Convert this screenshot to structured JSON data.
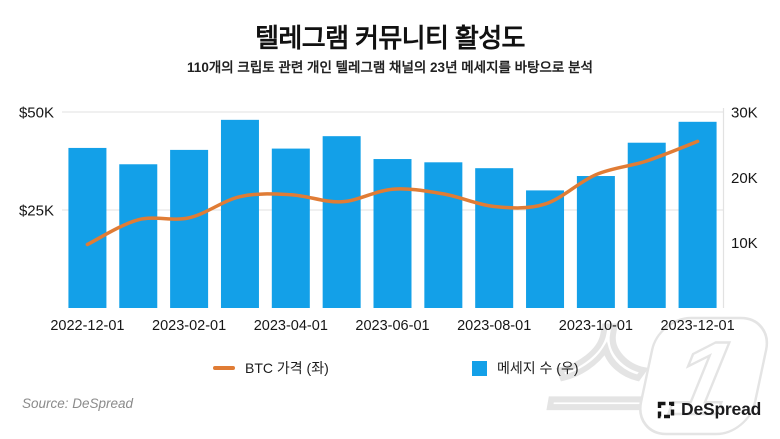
{
  "header": {
    "title": "텔레그램 커뮤니티 활성도",
    "subtitle": "110개의 크립토 관련 개인 텔레그램 채널의 23년 메세지를 바탕으로 분석"
  },
  "chart_data": {
    "type": "bar",
    "subtype": "bar+line dual-axis",
    "categories": [
      "2022-12-01",
      "2023-01-01",
      "2023-02-01",
      "2023-03-01",
      "2023-04-01",
      "2023-05-01",
      "2023-06-01",
      "2023-07-01",
      "2023-08-01",
      "2023-09-01",
      "2023-10-01",
      "2023-11-01",
      "2023-12-01"
    ],
    "series": [
      {
        "name": "메세지 수 (우)",
        "type": "bar",
        "axis": "right",
        "unit": "K messages",
        "color": "#13a0e8",
        "values": [
          24.5,
          22.0,
          24.2,
          28.8,
          24.4,
          26.3,
          22.8,
          22.3,
          21.4,
          18.0,
          20.2,
          25.3,
          28.5
        ]
      },
      {
        "name": "BTC 가격 (좌)",
        "type": "line",
        "axis": "left",
        "unit": "$K",
        "color": "#e07c35",
        "values": [
          16.2,
          22.5,
          23.0,
          28.4,
          28.9,
          27.1,
          30.3,
          29.1,
          25.9,
          26.5,
          34.0,
          37.5,
          42.5
        ]
      }
    ],
    "left_axis": {
      "range": [
        0,
        50
      ],
      "ticks": [
        {
          "label": "$50K",
          "value": 50
        },
        {
          "label": "$25K",
          "value": 25
        }
      ]
    },
    "right_axis": {
      "range": [
        0,
        30
      ],
      "ticks": [
        {
          "label": "30K",
          "value": 30
        },
        {
          "label": "20K",
          "value": 20
        },
        {
          "label": "10K",
          "value": 10
        }
      ]
    },
    "x_ticks": [
      {
        "label": "2022-12-01",
        "index": 0
      },
      {
        "label": "2023-02-01",
        "index": 2
      },
      {
        "label": "2023-04-01",
        "index": 4
      },
      {
        "label": "2023-06-01",
        "index": 6
      },
      {
        "label": "2023-08-01",
        "index": 8
      },
      {
        "label": "2023-10-01",
        "index": 10
      },
      {
        "label": "2023-12-01",
        "index": 12
      }
    ],
    "grid": "horizontal lines at left-axis ticks only",
    "legend_position": "bottom"
  },
  "legend": {
    "items": [
      {
        "label": "BTC 가격 (좌)",
        "marker": "line-dash",
        "color": "#e07c35"
      },
      {
        "label": "메세지 수 (우)",
        "marker": "square",
        "color": "#13a0e8"
      }
    ]
  },
  "footer": {
    "source": "Source: DeSpread",
    "brand": "DeSpread"
  },
  "watermark": {
    "char1": "스",
    "char2": "1",
    "description": "news1-outline-watermark"
  },
  "colors": {
    "bar": "#13a0e8",
    "line": "#e07c35",
    "grid": "#e7e7e7",
    "watermark_stroke": "#e4e4e4"
  }
}
